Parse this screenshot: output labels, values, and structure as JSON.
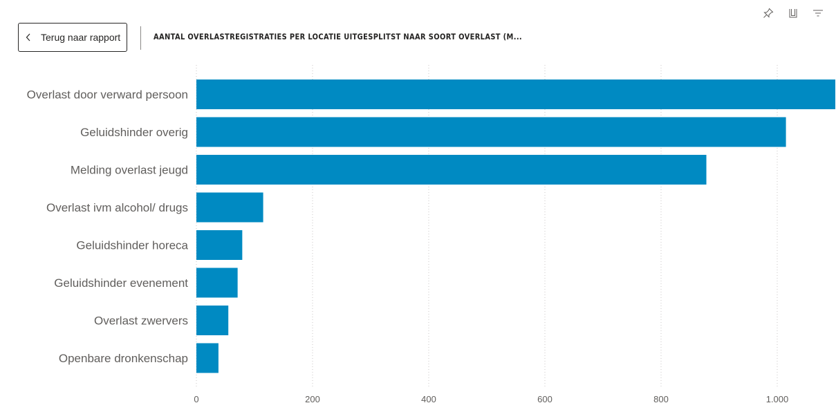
{
  "header": {
    "back_label": "Terug naar rapport",
    "title": "AANTAL OVERLASTREGISTRATIES PER LOCATIE UITGESPLITST NAAR SOORT OVERLAST (M..."
  },
  "toolbar": {
    "icons": [
      "pin-icon",
      "focus-mode-icon",
      "filter-icon"
    ]
  },
  "colors": {
    "bar": "#008ac2",
    "gridline": "#c8c6c4",
    "label": "#605e5c"
  },
  "chart_data": {
    "type": "bar",
    "orientation": "horizontal",
    "categories": [
      "Overlast door verward persoon",
      "Geluidshinder overig",
      "Melding overlast jeugd",
      "Overlast ivm alcohol/ drugs",
      "Geluidshinder horeca",
      "Geluidshinder evenement",
      "Overlast zwervers",
      "Openbare dronkenschap"
    ],
    "values": [
      1100,
      1015,
      878,
      115,
      79,
      71,
      55,
      38
    ],
    "xticks": [
      "0",
      "200",
      "400",
      "600",
      "800",
      "1.000"
    ],
    "xtick_values": [
      0,
      200,
      400,
      600,
      800,
      1000
    ],
    "xlim": [
      0,
      1100
    ],
    "grid": true
  }
}
